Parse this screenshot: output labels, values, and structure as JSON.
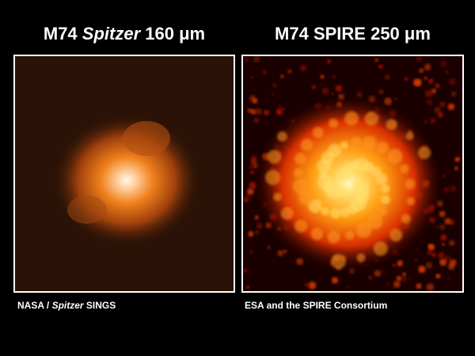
{
  "panels": [
    {
      "title": {
        "prefix": "M74 ",
        "italic": "Spitzer",
        "suffix": " 160 μm"
      },
      "credit": {
        "prefix": "NASA / ",
        "italic": "Spitzer",
        "suffix": " SINGS"
      }
    },
    {
      "title": {
        "prefix": "M74 SPIRE 250 μm"
      },
      "credit": {
        "prefix": "ESA and the SPIRE Consortium"
      }
    }
  ]
}
